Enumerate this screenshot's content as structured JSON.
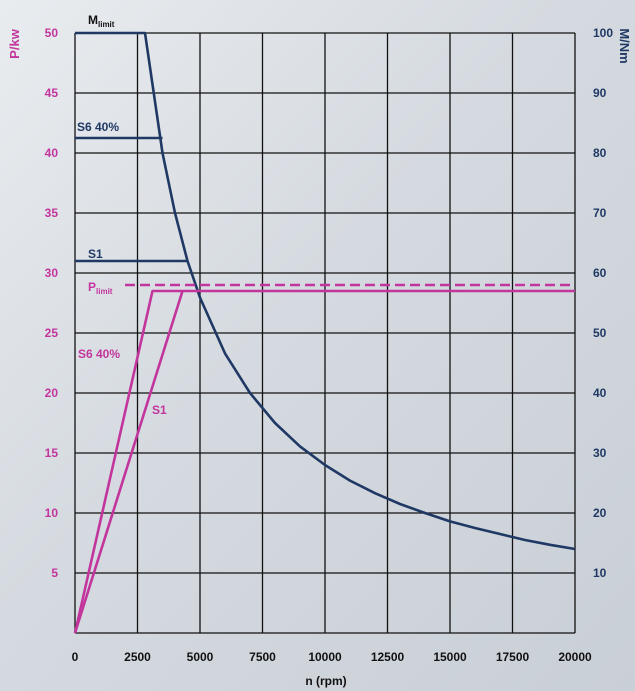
{
  "chart_data": {
    "type": "line",
    "xlabel": "n (rpm)",
    "ylabel_left": "P/kw",
    "ylabel_right": "M/Nm",
    "xlim": [
      0,
      20000
    ],
    "ylim_left": [
      0,
      50
    ],
    "ylim_right": [
      0,
      100
    ],
    "grid": true,
    "x_ticks": [
      "0",
      "2500",
      "5000",
      "7500",
      "10000",
      "12500",
      "15000",
      "17500",
      "20000"
    ],
    "left_ticks": [
      "5",
      "10",
      "15",
      "20",
      "25",
      "30",
      "35",
      "40",
      "45",
      "50"
    ],
    "right_ticks": [
      "10",
      "20",
      "30",
      "40",
      "50",
      "60",
      "70",
      "80",
      "90",
      "100"
    ],
    "torque_series": [
      {
        "name": "M_limit",
        "axis": "right",
        "x": [
          0,
          2800,
          3500,
          4000,
          4500,
          5000,
          6000,
          7000,
          8000,
          9000,
          10000,
          11000,
          12000,
          12500,
          13000,
          14000,
          15000,
          16000,
          17000,
          18000,
          19000,
          20000
        ],
        "y": [
          100,
          100,
          80,
          70,
          62,
          55.9,
          46.6,
          40,
          35,
          31.1,
          28,
          25.4,
          23.3,
          22.4,
          21.5,
          20,
          18.6,
          17.5,
          16.5,
          15.5,
          14.7,
          14
        ]
      },
      {
        "name": "S6 40%",
        "axis": "right",
        "x": [
          0,
          3500
        ],
        "y": [
          82.5,
          82.5
        ]
      },
      {
        "name": "S1",
        "axis": "right",
        "x": [
          0,
          4500
        ],
        "y": [
          62,
          62
        ]
      }
    ],
    "power_series": [
      {
        "name": "P_limit",
        "axis": "left",
        "style": "dashed",
        "x": [
          2000,
          20000
        ],
        "y": [
          29,
          29
        ]
      },
      {
        "name": "S6 40%",
        "axis": "left",
        "x": [
          0,
          3100,
          20000
        ],
        "y": [
          0,
          28.5,
          28.5
        ]
      },
      {
        "name": "S1",
        "axis": "left",
        "x": [
          0,
          4300
        ],
        "y": [
          0,
          28.5
        ]
      }
    ],
    "labels": {
      "m_limit_main": "M",
      "m_limit_sub": "limit",
      "p_limit_main": "P",
      "p_limit_sub": "limit",
      "torque_s6": "S6 40%",
      "torque_s1": "S1",
      "power_s6": "S6 40%",
      "power_s1": "S1"
    },
    "colors": {
      "torque": "#1f3864",
      "power": "#c2359c",
      "grid": "#111111",
      "right_axis_text": "#1f3864",
      "left_axis_text": "#c2359c"
    }
  }
}
